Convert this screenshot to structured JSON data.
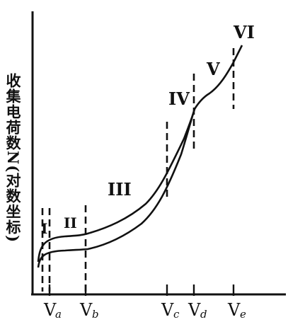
{
  "diagram": {
    "ylabel": "收集电荷数N(对数坐标)",
    "regions": [
      "I",
      "II",
      "III",
      "IV",
      "V",
      "VI"
    ],
    "voltages": [
      {
        "main": "V",
        "sub": "a"
      },
      {
        "main": "V",
        "sub": "b"
      },
      {
        "main": "V",
        "sub": "c"
      },
      {
        "main": "V",
        "sub": "d"
      },
      {
        "main": "V",
        "sub": "e"
      }
    ]
  }
}
